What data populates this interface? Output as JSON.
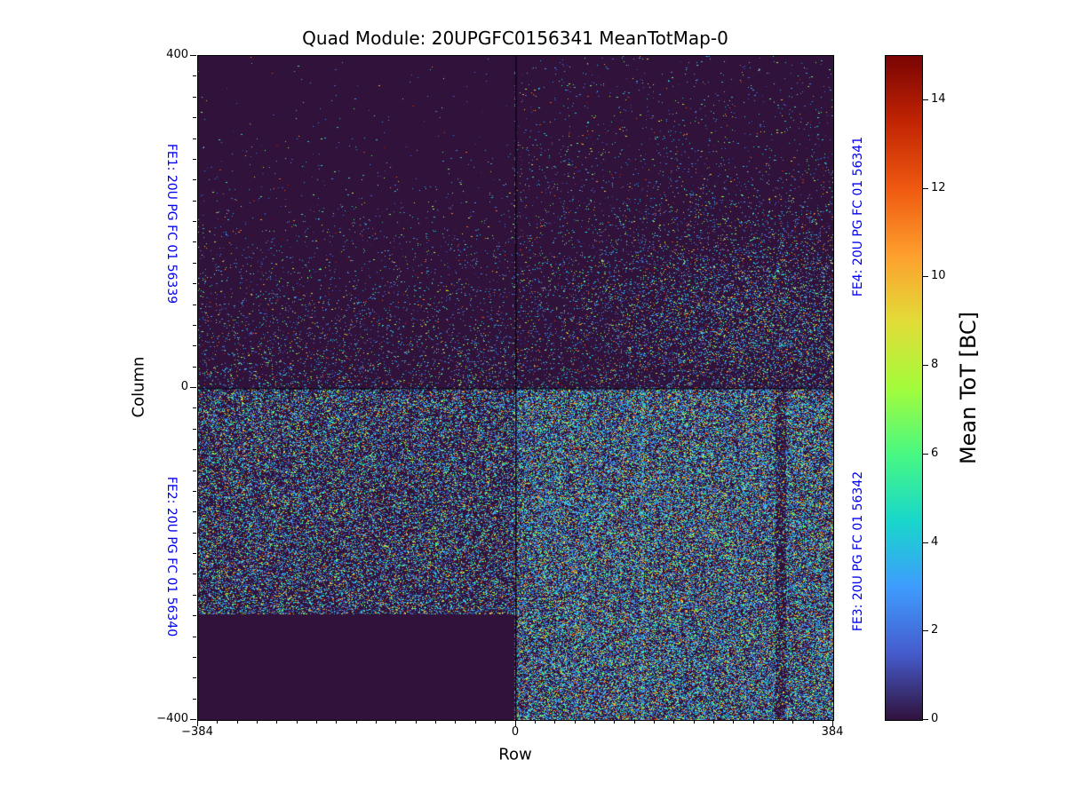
{
  "chart_data": {
    "type": "heatmap",
    "title": "Quad Module: 20UPGFC0156341 MeanTotMap-0",
    "xlabel": "Row",
    "ylabel": "Column",
    "x_range": [
      -384,
      384
    ],
    "y_range": [
      -400,
      400
    ],
    "x_ticks": [
      -384,
      0,
      384
    ],
    "x_tick_labels": [
      "−384",
      "0",
      "384"
    ],
    "y_ticks": [
      -400,
      0,
      400
    ],
    "y_tick_labels": [
      "−400",
      "0",
      "400"
    ],
    "x_minor_step": 24,
    "y_minor_step": 25,
    "grid": false,
    "background_value_color": "#30123b",
    "seed": 42,
    "colorbar": {
      "label": "Mean ToT [BC]",
      "vmin": 0,
      "vmax": 15,
      "ticks": [
        0,
        2,
        4,
        6,
        8,
        10,
        12,
        14
      ],
      "colormap": "turbo",
      "stops": [
        {
          "t": 0.0,
          "color": "#30123b"
        },
        {
          "t": 0.1,
          "color": "#455bcd"
        },
        {
          "t": 0.2,
          "color": "#3e9cfe"
        },
        {
          "t": 0.3,
          "color": "#18d7cb"
        },
        {
          "t": 0.4,
          "color": "#48f882"
        },
        {
          "t": 0.5,
          "color": "#a4fc3b"
        },
        {
          "t": 0.6,
          "color": "#e2dc38"
        },
        {
          "t": 0.7,
          "color": "#fe9f2d"
        },
        {
          "t": 0.8,
          "color": "#ef5911"
        },
        {
          "t": 0.9,
          "color": "#c22403"
        },
        {
          "t": 1.0,
          "color": "#7a0403"
        }
      ]
    },
    "fe_labels": [
      {
        "text": "FE1: 20U PG FC 01 56339",
        "side": "left",
        "half": "top",
        "color": "#0000ee"
      },
      {
        "text": "FE2: 20U PG FC 01 56340",
        "side": "left",
        "half": "bottom",
        "color": "#0000ee"
      },
      {
        "text": "FE4: 20U PG FC 01 56341",
        "side": "right",
        "half": "top",
        "color": "#0000ee"
      },
      {
        "text": "FE3: 20U PG FC 01 56342",
        "side": "right",
        "half": "bottom",
        "color": "#0000ee"
      }
    ],
    "regions": {
      "fe1_top_left": {
        "density_top": 0.002,
        "density_bottom": 0.085,
        "gamma": 2.6
      },
      "fe4_top_right": {
        "density_top": 0.012,
        "density_bottom": 0.07,
        "gamma": 1.7,
        "cloud": {
          "row": 300,
          "col": 80,
          "sigma_row": 160,
          "sigma_col": 95,
          "boost": 0.17
        }
      },
      "fe2_bottom_left": {
        "density": 0.33,
        "dead_zone": {
          "row": [
            -384,
            0
          ],
          "col": [
            -400,
            -272
          ]
        }
      },
      "fe3_bottom_right": {
        "density": 0.48,
        "bright_stripe_row": 153,
        "dark_stripe_rows": [
          314,
          327
        ]
      }
    },
    "separator_lines": {
      "row0_vertical": true,
      "col0_horizontal": true
    },
    "value_distribution": [
      {
        "p": 0.62,
        "range": [
          0.8,
          4.5
        ]
      },
      {
        "p": 0.18,
        "range": [
          4.5,
          7.5
        ]
      },
      {
        "p": 0.1,
        "range": [
          7.5,
          10.5
        ]
      },
      {
        "p": 0.065,
        "range": [
          10.5,
          13.0
        ]
      },
      {
        "p": 0.035,
        "range": [
          13.0,
          15.0
        ]
      }
    ]
  },
  "layout_text": {
    "note": ""
  }
}
